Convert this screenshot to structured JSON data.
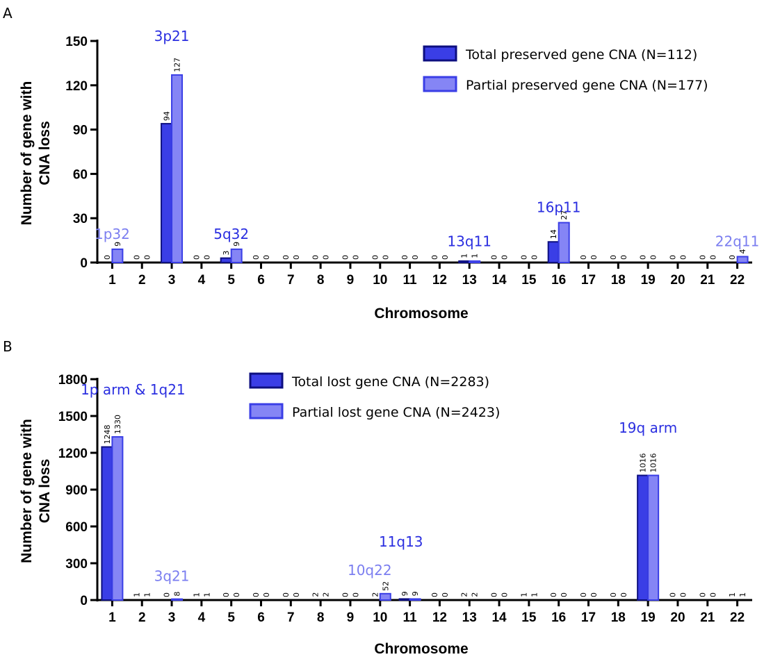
{
  "chart_data": [
    {
      "panel": "A",
      "type": "bar",
      "title": "",
      "xlabel": "Chromosome",
      "ylabel_lines": [
        "Number of gene with",
        "CNA loss"
      ],
      "ylim": [
        0,
        150
      ],
      "yticks": [
        0,
        30,
        60,
        90,
        120,
        150
      ],
      "categories": [
        "1",
        "2",
        "3",
        "4",
        "5",
        "6",
        "7",
        "8",
        "9",
        "10",
        "11",
        "12",
        "13",
        "14",
        "15",
        "16",
        "17",
        "18",
        "19",
        "20",
        "21",
        "22"
      ],
      "series": [
        {
          "name": "Total preserved gene CNA (N=112)",
          "color": "#3a3ee6",
          "stroke": "#0d0f80",
          "values": [
            0,
            0,
            94,
            0,
            3,
            0,
            0,
            0,
            0,
            0,
            0,
            0,
            1,
            0,
            0,
            14,
            0,
            0,
            0,
            0,
            0,
            0
          ]
        },
        {
          "name": "Partial preserved gene CNA (N=177)",
          "color": "#8585f5",
          "stroke": "#3a3ee6",
          "values": [
            9,
            0,
            127,
            0,
            9,
            0,
            0,
            0,
            0,
            0,
            0,
            0,
            1,
            0,
            0,
            27,
            0,
            0,
            0,
            0,
            0,
            4
          ]
        }
      ],
      "legend_position": "top-right",
      "annotations": [
        {
          "text": "1p32",
          "category": 1,
          "value": 16,
          "color": "#7b7ef0"
        },
        {
          "text": "3p21",
          "category": 3,
          "value": 150,
          "color": "#2a2ee0"
        },
        {
          "text": "5q32",
          "category": 5,
          "value": 16,
          "color": "#2a2ee0"
        },
        {
          "text": "13q11",
          "category": 13,
          "value": 11,
          "color": "#2a2ee0"
        },
        {
          "text": "16p11",
          "category": 16,
          "value": 34,
          "color": "#2a2ee0"
        },
        {
          "text": "22q11",
          "category": 22,
          "value": 11,
          "color": "#7b7ef0"
        }
      ]
    },
    {
      "panel": "B",
      "type": "bar",
      "title": "",
      "xlabel": "Chromosome",
      "ylabel_lines": [
        "Number of gene with",
        "CNA loss"
      ],
      "ylim": [
        0,
        1800
      ],
      "yticks": [
        0,
        300,
        600,
        900,
        1200,
        1500,
        1800
      ],
      "categories": [
        "1",
        "2",
        "3",
        "4",
        "5",
        "6",
        "7",
        "8",
        "9",
        "10",
        "11",
        "12",
        "13",
        "14",
        "15",
        "16",
        "17",
        "18",
        "19",
        "20",
        "21",
        "22"
      ],
      "series": [
        {
          "name": "Total lost gene CNA (N=2283)",
          "color": "#3a3ee6",
          "stroke": "#0d0f80",
          "values": [
            1248,
            1,
            0,
            1,
            0,
            0,
            0,
            2,
            0,
            2,
            9,
            0,
            2,
            0,
            1,
            0,
            0,
            0,
            1016,
            0,
            0,
            1
          ]
        },
        {
          "name": "Partial lost gene CNA (N=2423)",
          "color": "#8585f5",
          "stroke": "#3a3ee6",
          "values": [
            1330,
            1,
            8,
            1,
            0,
            0,
            0,
            2,
            0,
            52,
            9,
            0,
            2,
            0,
            1,
            0,
            0,
            0,
            1016,
            0,
            0,
            1
          ]
        }
      ],
      "legend_position": "top-center",
      "annotations": [
        {
          "text": "1p arm & 1q21",
          "category": 1.7,
          "value": 1675,
          "color": "#2a2ee0"
        },
        {
          "text": "3q21",
          "category": 3,
          "value": 155,
          "color": "#7b7ef0"
        },
        {
          "text": "10q22",
          "category": 9.65,
          "value": 205,
          "color": "#7b7ef0"
        },
        {
          "text": "11q13",
          "category": 10.7,
          "value": 435,
          "color": "#2a2ee0"
        },
        {
          "text": "19q arm",
          "category": 19,
          "value": 1365,
          "color": "#2a2ee0"
        }
      ]
    }
  ]
}
